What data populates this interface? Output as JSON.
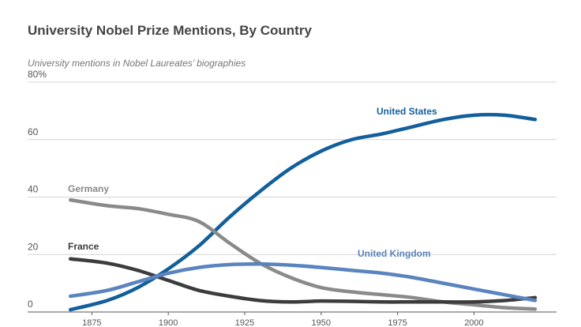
{
  "chart_data": {
    "type": "line",
    "title": "University Nobel Prize Mentions, By Country",
    "subtitle": "University mentions in Nobel Laureates’ biographies",
    "x": [
      1868,
      1880,
      1890,
      1900,
      1910,
      1920,
      1930,
      1940,
      1950,
      1960,
      1970,
      1980,
      1990,
      2000,
      2010,
      2020
    ],
    "series": [
      {
        "name": "United States",
        "color": "#135f9b",
        "values": [
          0.8,
          4,
          8.5,
          15,
          23,
          33,
          42,
          50,
          56,
          60,
          62,
          64.5,
          67,
          68.5,
          68.5,
          67
        ]
      },
      {
        "name": "Germany",
        "color": "#8a8a8a",
        "values": [
          39,
          37,
          36,
          34,
          31.5,
          24,
          17,
          12,
          8.5,
          7,
          6,
          5,
          3.5,
          2.5,
          1.5,
          1
        ]
      },
      {
        "name": "France",
        "color": "#3c3c3c",
        "values": [
          18.5,
          17,
          14.5,
          11,
          7.5,
          5.5,
          4,
          3.5,
          3.8,
          3.7,
          3.5,
          3.5,
          3.5,
          3.5,
          4,
          5
        ]
      },
      {
        "name": "United Kingdom",
        "color": "#5a84bf",
        "values": [
          5.5,
          7.5,
          10.5,
          13.5,
          15.5,
          16.5,
          16.7,
          16.3,
          15.5,
          14.5,
          13.5,
          12,
          10,
          8,
          6,
          4
        ]
      }
    ],
    "xlim": [
      1854,
      2027
    ],
    "xticks": [
      1875,
      1900,
      1925,
      1950,
      1975,
      2000
    ],
    "ylim": [
      0,
      80
    ],
    "yticks": [
      0,
      20,
      40,
      60,
      {
        "value": 80,
        "label": "80%"
      }
    ],
    "grid": true
  }
}
